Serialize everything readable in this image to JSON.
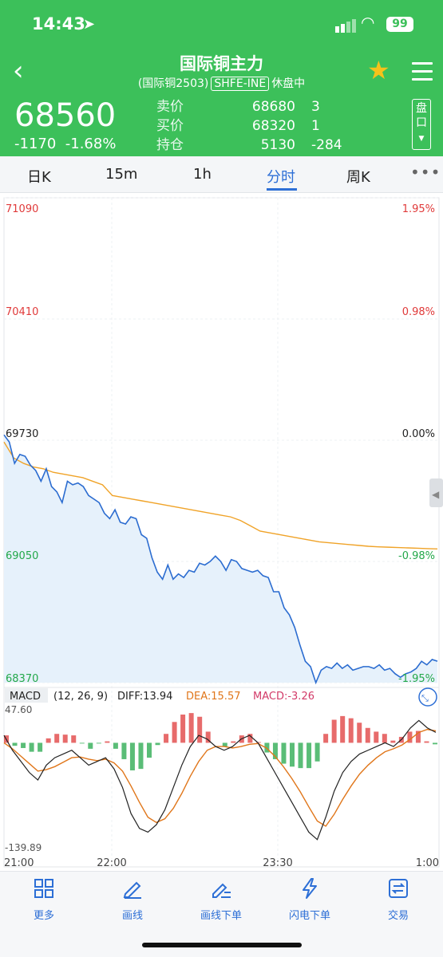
{
  "status": {
    "time": "14:43",
    "battery": "99"
  },
  "header": {
    "title": "国际铜主力",
    "contract": "(国际铜2503)",
    "exchange": "SHFE-INE",
    "session": "休盘中",
    "price": "68560",
    "change": "-1170",
    "change_pct": "-1.68%",
    "quotes": [
      {
        "label": "卖价",
        "value": "68680",
        "vol": "3"
      },
      {
        "label": "买价",
        "value": "68320",
        "vol": "1"
      },
      {
        "label": "持仓",
        "value": "5130",
        "vol": "-284"
      }
    ],
    "pankou": "盘口"
  },
  "tabs": [
    {
      "label": "日K"
    },
    {
      "label": "15m"
    },
    {
      "label": "1h"
    },
    {
      "label": "分时"
    },
    {
      "label": "周K"
    }
  ],
  "tab_more": "•••",
  "colors": {
    "green": "#3cc05a",
    "up": "#e03a3a",
    "down": "#23a84a",
    "line": "#2b6cd0",
    "avg": "#f0a328",
    "macd_orange": "#e0761a",
    "macd_pink": "#d23a68"
  },
  "chart_data": {
    "type": "line",
    "price_axis_left": [
      "71090",
      "70410",
      "69730",
      "69050",
      "68370"
    ],
    "pct_axis_right": [
      "1.95%",
      "0.98%",
      "0.00%",
      "-0.98%",
      "-1.95%"
    ],
    "ylim": [
      68370,
      71090
    ],
    "x_labels": [
      "21:00",
      "22:00",
      "23:30",
      "1:00"
    ],
    "price_series": [
      69760,
      69720,
      69600,
      69650,
      69640,
      69590,
      69560,
      69500,
      69570,
      69470,
      69440,
      69380,
      69500,
      69480,
      69490,
      69470,
      69420,
      69400,
      69380,
      69320,
      69290,
      69340,
      69270,
      69260,
      69300,
      69290,
      69200,
      69180,
      69070,
      68990,
      68950,
      69030,
      68950,
      68980,
      68960,
      69000,
      68990,
      69040,
      69030,
      69050,
      69080,
      69050,
      69000,
      69060,
      69050,
      69010,
      69000,
      68990,
      69000,
      68970,
      68960,
      68880,
      68880,
      68790,
      68750,
      68680,
      68580,
      68490,
      68460,
      68370,
      68440,
      68460,
      68450,
      68480,
      68450,
      68470,
      68440,
      68450,
      68460,
      68460,
      68450,
      68470,
      68440,
      68450,
      68420,
      68400,
      68420,
      68430,
      68450,
      68490,
      68470,
      68500,
      68490
    ],
    "avg_series": [
      69720,
      69630,
      69600,
      69580,
      69570,
      69550,
      69540,
      69530,
      69520,
      69500,
      69480,
      69420,
      69410,
      69400,
      69390,
      69380,
      69370,
      69360,
      69350,
      69340,
      69330,
      69320,
      69310,
      69300,
      69280,
      69250,
      69220,
      69210,
      69200,
      69190,
      69180,
      69170,
      69160,
      69155,
      69150,
      69145,
      69140,
      69135,
      69132,
      69130,
      69128,
      69126,
      69124,
      69122,
      69120
    ],
    "macd": {
      "label": "MACD",
      "params": "(12, 26, 9)",
      "diff": "DIFF:13.94",
      "dea": "DEA:15.57",
      "macd": "MACD:-3.26",
      "top": "47.60",
      "bottom": "-139.89",
      "ylim": [
        -139.89,
        47.6
      ],
      "diff_series": [
        10,
        -10,
        -25,
        -40,
        -50,
        -30,
        -20,
        -15,
        -10,
        -20,
        -30,
        -25,
        -20,
        -35,
        -60,
        -95,
        -115,
        -120,
        -110,
        -90,
        -60,
        -30,
        -5,
        10,
        5,
        -5,
        -10,
        -5,
        5,
        10,
        0,
        -20,
        -40,
        -60,
        -80,
        -100,
        -120,
        -130,
        -100,
        -65,
        -40,
        -25,
        -15,
        -10,
        -5,
        0,
        -5,
        5,
        20,
        30,
        20,
        14
      ],
      "dea_series": [
        0,
        -8,
        -18,
        -28,
        -38,
        -36,
        -32,
        -26,
        -20,
        -19,
        -22,
        -24,
        -22,
        -27,
        -38,
        -58,
        -80,
        -100,
        -107,
        -102,
        -88,
        -68,
        -45,
        -25,
        -10,
        -5,
        -5,
        -7,
        -5,
        -2,
        -1,
        -7,
        -18,
        -32,
        -48,
        -66,
        -86,
        -105,
        -112,
        -96,
        -76,
        -58,
        -42,
        -30,
        -20,
        -12,
        -8,
        -3,
        5,
        14,
        18,
        16
      ],
      "hist_series": [
        10,
        -4,
        -7,
        -12,
        -12,
        6,
        12,
        11,
        10,
        -1,
        -8,
        -1,
        2,
        -8,
        -22,
        -37,
        -35,
        -20,
        -3,
        12,
        28,
        38,
        40,
        35,
        15,
        0,
        -5,
        2,
        10,
        12,
        1,
        -13,
        -22,
        -28,
        -32,
        -34,
        -34,
        -25,
        12,
        31,
        36,
        33,
        27,
        20,
        15,
        12,
        3,
        8,
        15,
        16,
        2,
        -2
      ]
    }
  },
  "bottom_nav": [
    {
      "label": "更多",
      "icon": "grid-icon"
    },
    {
      "label": "画线",
      "icon": "pen-icon"
    },
    {
      "label": "画线下单",
      "icon": "draw-order-icon"
    },
    {
      "label": "闪电下单",
      "icon": "lightning-icon"
    },
    {
      "label": "交易",
      "icon": "exchange-icon"
    }
  ]
}
